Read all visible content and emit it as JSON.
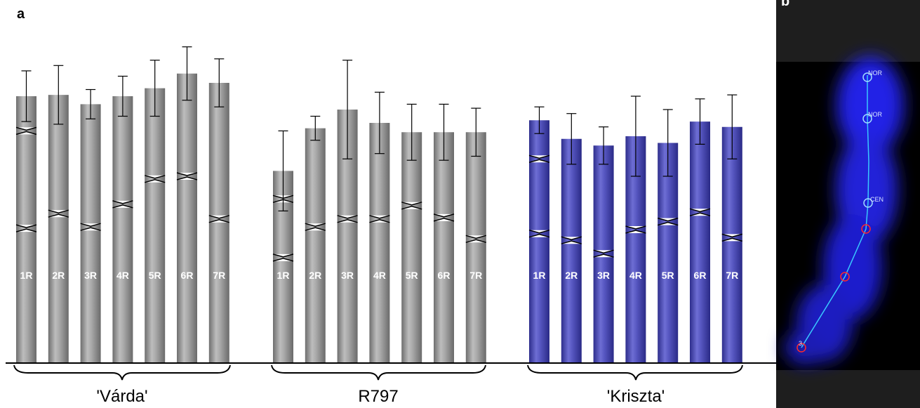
{
  "panel_a_label": "a",
  "panel_b_label": "b",
  "chromosome_labels": [
    "1R",
    "2R",
    "3R",
    "4R",
    "5R",
    "6R",
    "7R"
  ],
  "colors": {
    "grey": "#9a9a9a",
    "blue": "#4b4bb3",
    "micro_bg": "#000000",
    "trace": "#39c8ff",
    "circle_red": "#ff2a2a",
    "circle_blue": "#9fdcff"
  },
  "groups": [
    {
      "name": "'Várda'",
      "color": "grey",
      "chromosomes": [
        {
          "label": "1R",
          "total": 100,
          "err": 9.5,
          "cents": [
            87,
            50.5
          ]
        },
        {
          "label": "2R",
          "total": 100.5,
          "err": 11,
          "cents": [
            56
          ]
        },
        {
          "label": "3R",
          "total": 97,
          "err": 5.5,
          "cents": [
            51
          ]
        },
        {
          "label": "4R",
          "total": 100,
          "err": 7.5,
          "cents": [
            59.5
          ]
        },
        {
          "label": "5R",
          "total": 103,
          "err": 10.5,
          "cents": [
            69
          ]
        },
        {
          "label": "6R",
          "total": 108.5,
          "err": 10,
          "cents": [
            70
          ]
        },
        {
          "label": "7R",
          "total": 105,
          "err": 9,
          "cents": [
            54
          ]
        }
      ]
    },
    {
      "name": "R797",
      "color": "grey",
      "chromosomes": [
        {
          "label": "1R",
          "total": 72,
          "err": 15,
          "cents": [
            61.5,
            39.5
          ]
        },
        {
          "label": "2R",
          "total": 88,
          "err": 4.5,
          "cents": [
            51
          ]
        },
        {
          "label": "3R",
          "total": 95,
          "err": 18.5,
          "cents": [
            54
          ]
        },
        {
          "label": "4R",
          "total": 90,
          "err": 11.5,
          "cents": [
            54
          ]
        },
        {
          "label": "5R",
          "total": 86.5,
          "err": 10.5,
          "cents": [
            59
          ]
        },
        {
          "label": "6R",
          "total": 86.5,
          "err": 10.5,
          "cents": [
            54.5
          ]
        },
        {
          "label": "7R",
          "total": 86.5,
          "err": 9,
          "cents": [
            46.5
          ]
        }
      ]
    },
    {
      "name": "'Kriszta'",
      "color": "blue",
      "chromosomes": [
        {
          "label": "1R",
          "total": 91,
          "err": 5,
          "cents": [
            76.5,
            48.5
          ]
        },
        {
          "label": "2R",
          "total": 84,
          "err": 9.5,
          "cents": [
            46
          ]
        },
        {
          "label": "3R",
          "total": 81.5,
          "err": 7,
          "cents": [
            41
          ]
        },
        {
          "label": "4R",
          "total": 85,
          "err": 15,
          "cents": [
            50
          ]
        },
        {
          "label": "5R",
          "total": 82.5,
          "err": 12.5,
          "cents": [
            53
          ]
        },
        {
          "label": "6R",
          "total": 90.5,
          "err": 8.5,
          "cents": [
            56.5
          ]
        },
        {
          "label": "7R",
          "total": 88.5,
          "err": 12,
          "cents": [
            47
          ]
        }
      ]
    }
  ],
  "micro_labels": {
    "nor1": "NOR",
    "nor2": "NOR",
    "cen": "CEN",
    "tip": "3"
  }
}
